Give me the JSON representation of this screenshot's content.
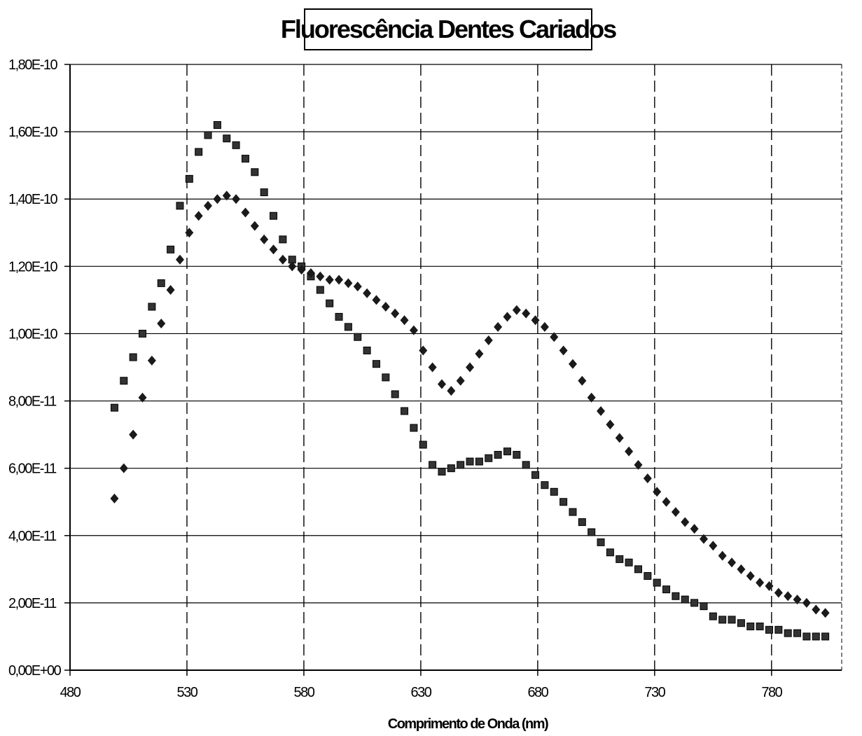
{
  "chart_data": {
    "type": "scatter",
    "title": "Fluorescência Dentes Cariados",
    "xlabel": "Comprimento de Onda (nm)",
    "ylabel": "",
    "xlim": [
      480,
      810
    ],
    "ylim": [
      0,
      1.8e-10
    ],
    "x_ticks": [
      480,
      530,
      580,
      630,
      680,
      730,
      780
    ],
    "x_tick_labels": [
      "480",
      "530",
      "580",
      "630",
      "680",
      "730",
      "780"
    ],
    "y_ticks": [
      0,
      2e-11,
      4e-11,
      6e-11,
      8e-11,
      1e-10,
      1.2e-10,
      1.4e-10,
      1.6e-10,
      1.8e-10
    ],
    "y_tick_labels": [
      "0,00E+00",
      "2,00E-11",
      "4,00E-11",
      "6,00E-11",
      "8,00E-11",
      "1,00E-10",
      "1,20E-10",
      "1,40E-10",
      "1,60E-10",
      "1,80E-10"
    ],
    "grid": true,
    "legend": "none",
    "series": [
      {
        "marker": "square",
        "color": "#333333",
        "x": [
          499,
          503,
          507,
          511,
          515,
          519,
          523,
          527,
          531,
          535,
          539,
          543,
          547,
          551,
          555,
          559,
          563,
          567,
          571,
          575,
          579,
          583,
          587,
          591,
          595,
          599,
          603,
          607,
          611,
          615,
          619,
          623,
          627,
          631,
          635,
          639,
          643,
          647,
          651,
          655,
          659,
          663,
          667,
          671,
          675,
          679,
          683,
          687,
          691,
          695,
          699,
          703,
          707,
          711,
          715,
          719,
          723,
          727,
          731,
          735,
          739,
          743,
          747,
          751,
          755,
          759,
          763,
          767,
          771,
          775,
          779,
          783,
          787,
          791,
          795,
          799,
          803
        ],
        "y": [
          7.8e-11,
          8.6e-11,
          9.3e-11,
          1e-10,
          1.08e-10,
          1.15e-10,
          1.25e-10,
          1.38e-10,
          1.46e-10,
          1.54e-10,
          1.59e-10,
          1.62e-10,
          1.58e-10,
          1.56e-10,
          1.52e-10,
          1.48e-10,
          1.42e-10,
          1.35e-10,
          1.28e-10,
          1.22e-10,
          1.2e-10,
          1.17e-10,
          1.13e-10,
          1.09e-10,
          1.05e-10,
          1.02e-10,
          9.9e-11,
          9.5e-11,
          9.1e-11,
          8.7e-11,
          8.2e-11,
          7.7e-11,
          7.2e-11,
          6.7e-11,
          6.1e-11,
          5.9e-11,
          6e-11,
          6.1e-11,
          6.2e-11,
          6.2e-11,
          6.3e-11,
          6.4e-11,
          6.5e-11,
          6.4e-11,
          6.1e-11,
          5.8e-11,
          5.5e-11,
          5.3e-11,
          5e-11,
          4.7e-11,
          4.4e-11,
          4.1e-11,
          3.8e-11,
          3.5e-11,
          3.3e-11,
          3.2e-11,
          3e-11,
          2.8e-11,
          2.6e-11,
          2.4e-11,
          2.2e-11,
          2.1e-11,
          2e-11,
          1.9e-11,
          1.6e-11,
          1.5e-11,
          1.5e-11,
          1.4e-11,
          1.3e-11,
          1.3e-11,
          1.2e-11,
          1.2e-11,
          1.1e-11,
          1.1e-11,
          1e-11,
          1e-11,
          1e-11
        ]
      },
      {
        "marker": "diamond",
        "color": "#1a1a1a",
        "x": [
          499,
          503,
          507,
          511,
          515,
          519,
          523,
          527,
          531,
          535,
          539,
          543,
          547,
          551,
          555,
          559,
          563,
          567,
          571,
          575,
          579,
          583,
          587,
          591,
          595,
          599,
          603,
          607,
          611,
          615,
          619,
          623,
          627,
          631,
          635,
          639,
          643,
          647,
          651,
          655,
          659,
          663,
          667,
          671,
          675,
          679,
          683,
          687,
          691,
          695,
          699,
          703,
          707,
          711,
          715,
          719,
          723,
          727,
          731,
          735,
          739,
          743,
          747,
          751,
          755,
          759,
          763,
          767,
          771,
          775,
          779,
          783,
          787,
          791,
          795,
          799,
          803
        ],
        "y": [
          5.1e-11,
          6e-11,
          7e-11,
          8.1e-11,
          9.2e-11,
          1.03e-10,
          1.13e-10,
          1.22e-10,
          1.3e-10,
          1.35e-10,
          1.38e-10,
          1.4e-10,
          1.41e-10,
          1.4e-10,
          1.36e-10,
          1.32e-10,
          1.28e-10,
          1.25e-10,
          1.22e-10,
          1.2e-10,
          1.19e-10,
          1.18e-10,
          1.17e-10,
          1.16e-10,
          1.16e-10,
          1.15e-10,
          1.14e-10,
          1.12e-10,
          1.1e-10,
          1.08e-10,
          1.06e-10,
          1.04e-10,
          1.01e-10,
          9.5e-11,
          9e-11,
          8.5e-11,
          8.3e-11,
          8.6e-11,
          9e-11,
          9.4e-11,
          9.8e-11,
          1.02e-10,
          1.05e-10,
          1.07e-10,
          1.06e-10,
          1.04e-10,
          1.02e-10,
          9.9e-11,
          9.5e-11,
          9.1e-11,
          8.6e-11,
          8.1e-11,
          7.7e-11,
          7.3e-11,
          6.9e-11,
          6.5e-11,
          6.1e-11,
          5.7e-11,
          5.3e-11,
          5e-11,
          4.7e-11,
          4.4e-11,
          4.2e-11,
          3.9e-11,
          3.7e-11,
          3.4e-11,
          3.2e-11,
          3e-11,
          2.8e-11,
          2.6e-11,
          2.5e-11,
          2.3e-11,
          2.2e-11,
          2.1e-11,
          2e-11,
          1.8e-11,
          1.7e-11
        ]
      }
    ]
  }
}
